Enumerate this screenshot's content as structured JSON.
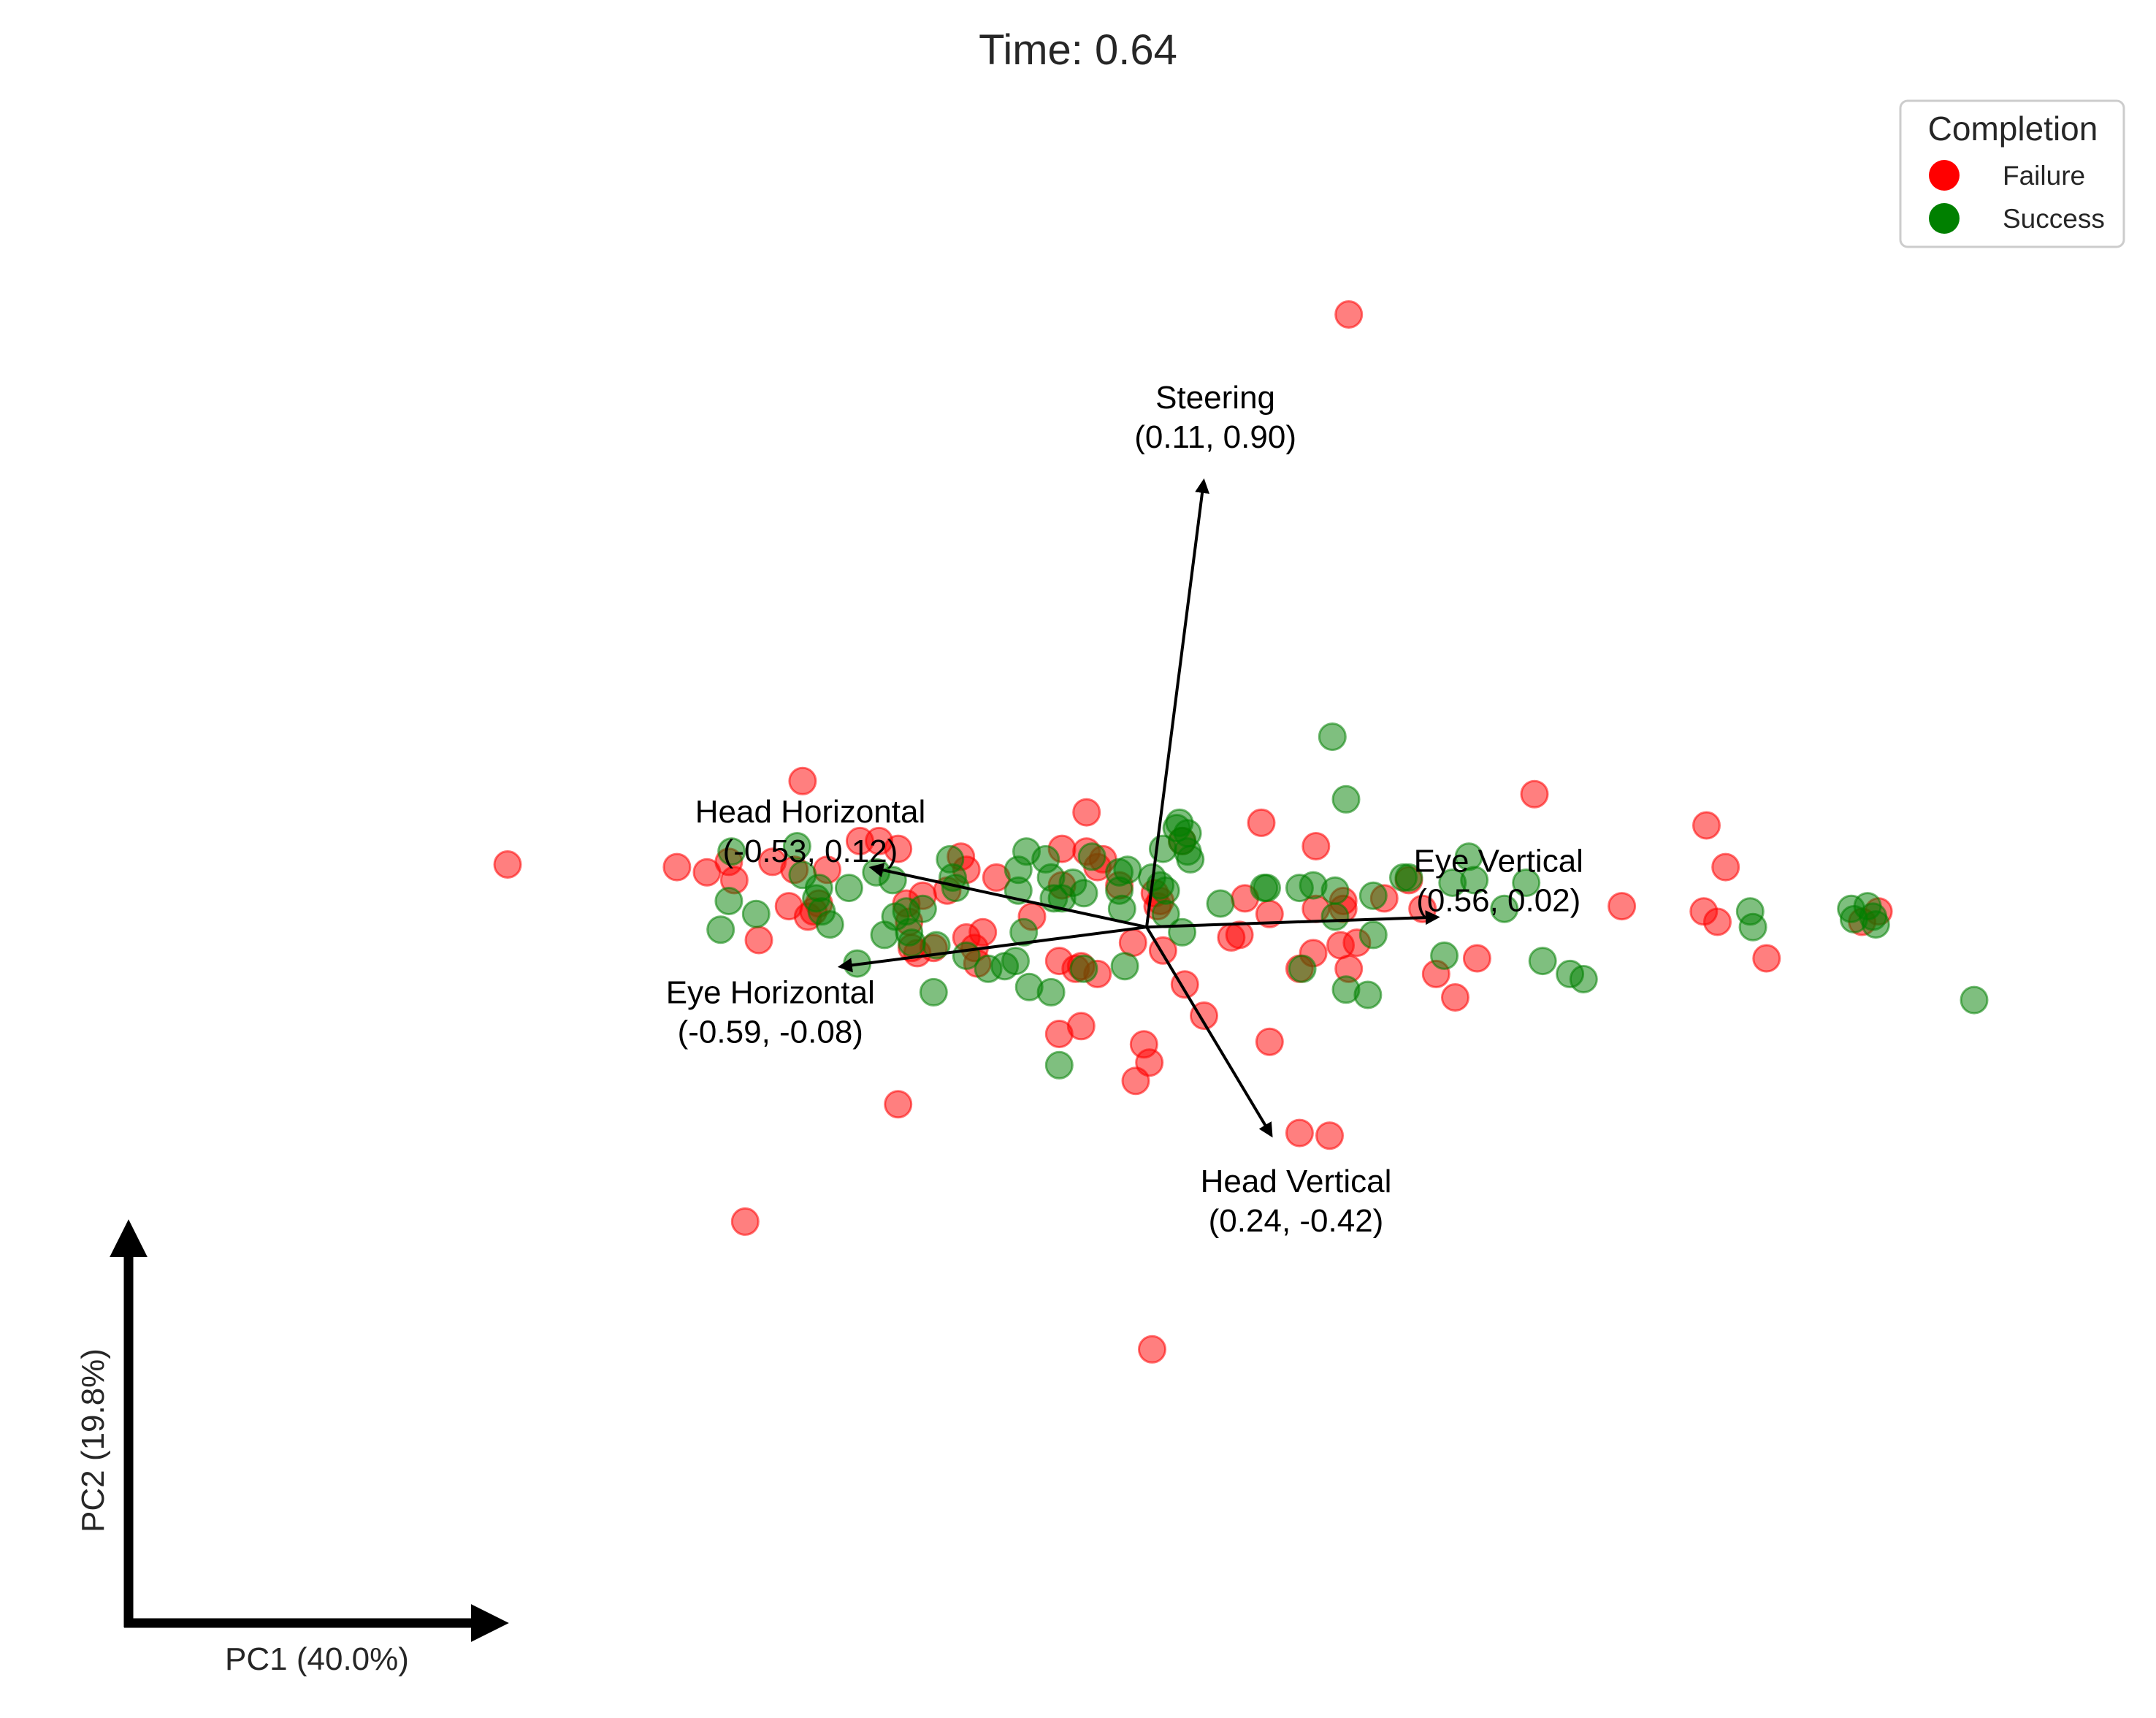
{
  "chart_data": {
    "type": "scatter",
    "title": "Time: 0.64",
    "xlabel": "PC1 (40.0%)",
    "ylabel": "PC2 (19.8%)",
    "xlim": [
      -3.45,
      3.45
    ],
    "ylim": [
      -2.3,
      3.22
    ],
    "grid": false,
    "legend": {
      "title": "Completion",
      "position": "top-right",
      "entries": [
        {
          "label": "Failure",
          "color": "#ff0000"
        },
        {
          "label": "Success",
          "color": "#008000"
        }
      ]
    },
    "colors": {
      "Failure": "#ff0000",
      "Success": "#008000",
      "arrow": "#000000"
    },
    "marker_alpha": 0.5,
    "loading_scale": 1.9,
    "loadings": [
      {
        "name": "Steering",
        "label": "Steering\n(0.11, 0.90)",
        "x": 0.11,
        "y": 0.9
      },
      {
        "name": "Head Horizontal",
        "label": "Head Horizontal\n(-0.53, 0.12)",
        "x": -0.53,
        "y": 0.12
      },
      {
        "name": "Eye Vertical",
        "label": "Eye Vertical\n(0.56, 0.02)",
        "x": 0.56,
        "y": 0.02
      },
      {
        "name": "Eye Horizontal",
        "label": "Eye Horizontal\n(-0.59, -0.08)",
        "x": -0.59,
        "y": -0.08
      },
      {
        "name": "Head Vertical",
        "label": "Head Vertical\n(0.24, -0.42)",
        "x": 0.24,
        "y": -0.42
      }
    ],
    "series": [
      {
        "name": "Failure",
        "points": [
          [
            0.74,
            2.35
          ],
          [
            -2.34,
            0.24
          ],
          [
            -1.26,
            0.56
          ],
          [
            -1.29,
            0.22
          ],
          [
            -1.17,
            0.22
          ],
          [
            -1.05,
            0.33
          ],
          [
            -0.98,
            0.33
          ],
          [
            -0.68,
            0.27
          ],
          [
            -0.66,
            0.22
          ],
          [
            -0.82,
            0.12
          ],
          [
            -0.73,
            0.14
          ],
          [
            -0.88,
            0.09
          ],
          [
            -0.87,
            0.02
          ],
          [
            -1.2,
            0.09
          ],
          [
            -1.22,
            0.06
          ],
          [
            -1.31,
            0.08
          ],
          [
            -1.42,
            -0.05
          ],
          [
            -0.86,
            -0.08
          ],
          [
            -0.84,
            -0.1
          ],
          [
            -0.78,
            -0.08
          ],
          [
            -0.66,
            -0.04
          ],
          [
            -0.62,
            -0.14
          ],
          [
            -0.6,
            -0.02
          ],
          [
            -0.63,
            -0.08
          ],
          [
            -0.42,
            0.04
          ],
          [
            -0.32,
            -0.13
          ],
          [
            -0.31,
            0.3
          ],
          [
            -0.31,
            0.16
          ],
          [
            -0.22,
            0.44
          ],
          [
            -0.22,
            0.29
          ],
          [
            -0.24,
            -0.15
          ],
          [
            -0.26,
            -0.16
          ],
          [
            -0.16,
            0.26
          ],
          [
            -0.18,
            0.23
          ],
          [
            -0.24,
            -0.38
          ],
          [
            -0.18,
            -0.18
          ],
          [
            -0.32,
            -0.41
          ],
          [
            -0.1,
            0.16
          ],
          [
            -0.05,
            -0.06
          ],
          [
            -0.01,
            -0.45
          ],
          [
            0.01,
            -0.52
          ],
          [
            -0.04,
            -0.59
          ],
          [
            0.03,
            0.13
          ],
          [
            0.04,
            0.08
          ],
          [
            0.05,
            0.1
          ],
          [
            0.06,
            -0.09
          ],
          [
            0.13,
            0.33
          ],
          [
            0.14,
            -0.22
          ],
          [
            0.21,
            -0.34
          ],
          [
            0.31,
            -0.04
          ],
          [
            0.34,
            -0.03
          ],
          [
            0.36,
            0.11
          ],
          [
            0.42,
            0.4
          ],
          [
            0.45,
            0.05
          ],
          [
            0.45,
            -0.44
          ],
          [
            0.62,
            0.31
          ],
          [
            0.62,
            0.07
          ],
          [
            0.61,
            -0.1
          ],
          [
            0.56,
            -0.16
          ],
          [
            0.71,
            -0.07
          ],
          [
            0.72,
            0.07
          ],
          [
            0.72,
            0.1
          ],
          [
            0.74,
            -0.16
          ],
          [
            0.77,
            -0.06
          ],
          [
            0.87,
            0.11
          ],
          [
            0.96,
            0.18
          ],
          [
            1.13,
            -0.27
          ],
          [
            1.01,
            0.07
          ],
          [
            1.06,
            -0.18
          ],
          [
            1.21,
            -0.12
          ],
          [
            1.42,
            0.51
          ],
          [
            1.74,
            0.08
          ],
          [
            2.05,
            0.39
          ],
          [
            2.04,
            0.06
          ],
          [
            2.12,
            0.23
          ],
          [
            2.09,
            0.02
          ],
          [
            2.27,
            -0.12
          ],
          [
            2.62,
            0.02
          ],
          [
            2.68,
            0.06
          ],
          [
            0.67,
            -0.8
          ],
          [
            -1.72,
            0.23
          ],
          [
            -1.61,
            0.21
          ],
          [
            -1.53,
            0.25
          ],
          [
            -1.51,
            0.18
          ],
          [
            -1.37,
            0.25
          ],
          [
            -1.24,
            0.04
          ],
          [
            -0.91,
            -0.68
          ],
          [
            -1.47,
            -1.13
          ],
          [
            0.56,
            -0.79
          ],
          [
            0.02,
            -1.62
          ],
          [
            -0.91,
            0.3
          ],
          [
            -0.55,
            0.19
          ]
        ]
      },
      {
        "name": "Success",
        "points": [
          [
            0.68,
            0.73
          ],
          [
            -1.52,
            0.29
          ],
          [
            -1.53,
            0.1
          ],
          [
            -1.56,
            -0.01
          ],
          [
            -1.43,
            0.05
          ],
          [
            -1.28,
            0.31
          ],
          [
            -1.26,
            0.2
          ],
          [
            -1.2,
            0.15
          ],
          [
            -1.21,
            0.11
          ],
          [
            -1.19,
            0.06
          ],
          [
            -1.16,
            0.01
          ],
          [
            -1.09,
            0.15
          ],
          [
            -1.06,
            -0.14
          ],
          [
            -0.99,
            0.21
          ],
          [
            -0.93,
            0.18
          ],
          [
            -0.88,
            0.06
          ],
          [
            -0.87,
            -0.02
          ],
          [
            -0.86,
            -0.06
          ],
          [
            -0.82,
            0.07
          ],
          [
            -0.77,
            -0.07
          ],
          [
            -0.72,
            0.26
          ],
          [
            -0.71,
            0.19
          ],
          [
            -0.7,
            0.15
          ],
          [
            -0.66,
            -0.11
          ],
          [
            -0.58,
            -0.16
          ],
          [
            -0.52,
            -0.15
          ],
          [
            -0.47,
            0.14
          ],
          [
            -0.47,
            0.22
          ],
          [
            -0.44,
            0.29
          ],
          [
            -0.37,
            0.26
          ],
          [
            -0.35,
            0.19
          ],
          [
            -0.34,
            0.11
          ],
          [
            -0.31,
            0.11
          ],
          [
            -0.27,
            0.17
          ],
          [
            -0.23,
            0.13
          ],
          [
            -0.23,
            -0.16
          ],
          [
            -0.1,
            0.14
          ],
          [
            -0.1,
            0.21
          ],
          [
            -0.09,
            0.07
          ],
          [
            0.02,
            0.19
          ],
          [
            0.05,
            0.16
          ],
          [
            0.12,
            0.4
          ],
          [
            0.11,
            0.38
          ],
          [
            0.15,
            0.36
          ],
          [
            0.13,
            0.33
          ],
          [
            0.15,
            0.29
          ],
          [
            0.06,
            0.3
          ],
          [
            0.07,
            0.14
          ],
          [
            0.07,
            0.05
          ],
          [
            0.13,
            -0.02
          ],
          [
            0.43,
            0.15
          ],
          [
            0.56,
            0.15
          ],
          [
            0.57,
            -0.16
          ],
          [
            0.61,
            0.16
          ],
          [
            0.69,
            0.14
          ],
          [
            0.69,
            0.04
          ],
          [
            0.83,
            0.12
          ],
          [
            0.83,
            -0.03
          ],
          [
            0.94,
            0.19
          ],
          [
            0.96,
            0.19
          ],
          [
            1.09,
            -0.11
          ],
          [
            1.31,
            0.07
          ],
          [
            1.39,
            0.17
          ],
          [
            1.45,
            -0.13
          ],
          [
            1.55,
            -0.18
          ],
          [
            1.6,
            -0.2
          ],
          [
            2.21,
            0.06
          ],
          [
            2.22,
            0.0
          ],
          [
            2.59,
            0.03
          ],
          [
            2.66,
            0.04
          ],
          [
            2.64,
            0.08
          ],
          [
            3.03,
            -0.28
          ],
          [
            2.58,
            0.07
          ],
          [
            2.67,
            0.01
          ],
          [
            -0.45,
            -0.02
          ],
          [
            -0.48,
            -0.13
          ],
          [
            -0.35,
            -0.25
          ],
          [
            -0.43,
            -0.23
          ],
          [
            -0.08,
            -0.15
          ],
          [
            -0.32,
            -0.53
          ],
          [
            -0.78,
            -0.25
          ],
          [
            -0.96,
            -0.03
          ],
          [
            -0.92,
            0.04
          ],
          [
            -0.2,
            0.27
          ],
          [
            -0.07,
            0.22
          ],
          [
            0.16,
            0.26
          ],
          [
            0.27,
            0.09
          ],
          [
            0.44,
            0.15
          ],
          [
            0.73,
            -0.24
          ],
          [
            0.81,
            -0.26
          ],
          [
            1.2,
            0.18
          ],
          [
            1.12,
            0.17
          ],
          [
            1.18,
            0.27
          ],
          [
            0.73,
            0.49
          ]
        ]
      }
    ]
  }
}
